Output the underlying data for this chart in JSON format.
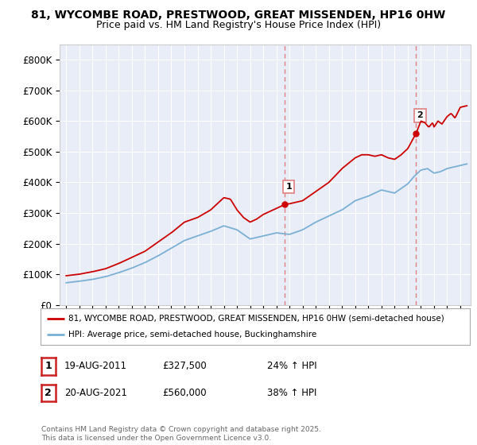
{
  "title_line1": "81, WYCOMBE ROAD, PRESTWOOD, GREAT MISSENDEN, HP16 0HW",
  "title_line2": "Price paid vs. HM Land Registry's House Price Index (HPI)",
  "background_color": "#ffffff",
  "plot_bg_color": "#e8edf8",
  "grid_color": "#ffffff",
  "sale_color": "#cc0000",
  "hpi_color": "#7ab0d4",
  "dashed_line_color": "#e08080",
  "sale1_x": 2011.64,
  "sale1_y": 327500,
  "sale2_x": 2021.64,
  "sale2_y": 560000,
  "ylim_max": 850000,
  "xlim_min": 1994.5,
  "xlim_max": 2025.8,
  "legend_sale": "81, WYCOMBE ROAD, PRESTWOOD, GREAT MISSENDEN, HP16 0HW (semi-detached house)",
  "legend_hpi": "HPI: Average price, semi-detached house, Buckinghamshire",
  "table_rows": [
    {
      "num": "1",
      "date": "19-AUG-2011",
      "price": "£327,500",
      "change": "24% ↑ HPI"
    },
    {
      "num": "2",
      "date": "20-AUG-2021",
      "price": "£560,000",
      "change": "38% ↑ HPI"
    }
  ],
  "footer": "Contains HM Land Registry data © Crown copyright and database right 2025.\nThis data is licensed under the Open Government Licence v3.0.",
  "yticks": [
    0,
    100000,
    200000,
    300000,
    400000,
    500000,
    600000,
    700000,
    800000
  ]
}
